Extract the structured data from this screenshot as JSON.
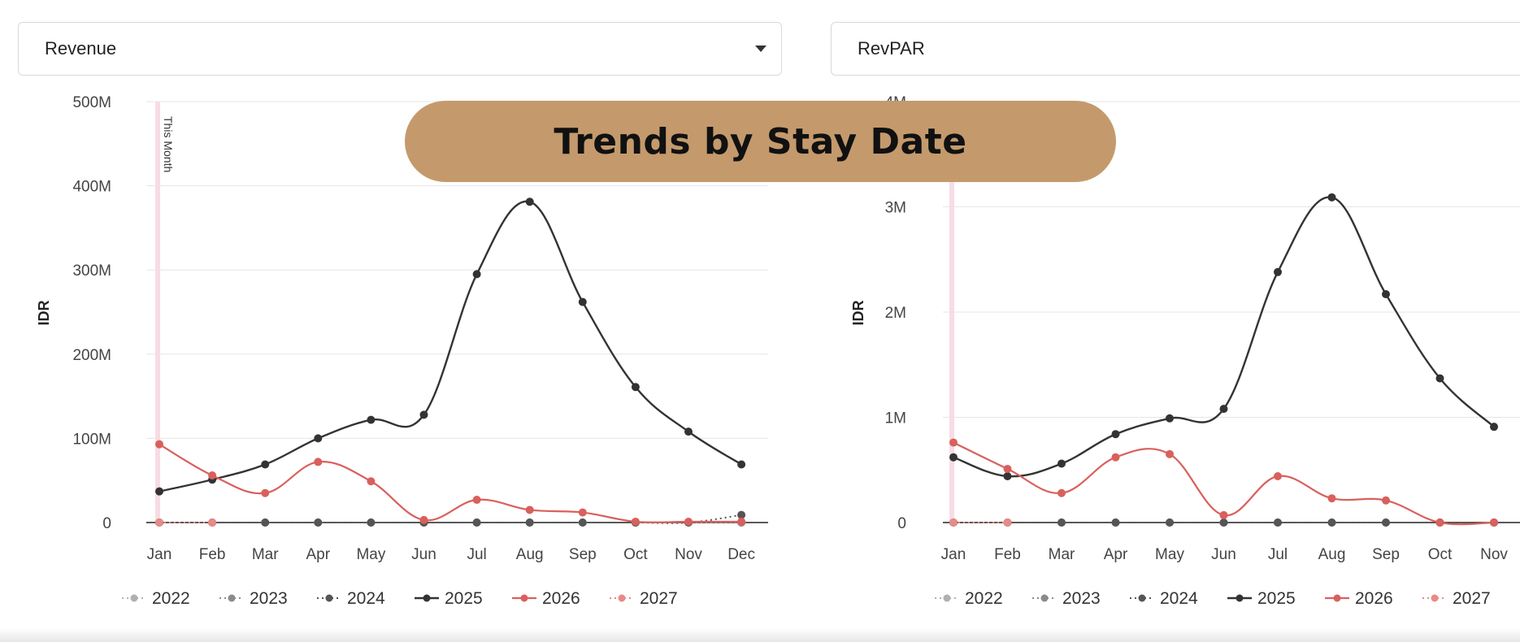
{
  "selectors": {
    "left": {
      "value": "Revenue"
    },
    "right": {
      "value": "RevPAR"
    }
  },
  "banner": {
    "title": "Trends by Stay Date"
  },
  "colors": {
    "2022": "#b0b0b0",
    "2023": "#8a8a8a",
    "2024": "#555555",
    "2025": "#333333",
    "2026": "#d9605c",
    "2027": "#e88a87",
    "marker": "#f7dce4",
    "grid": "#e6e6e6"
  },
  "chart_data": [
    {
      "type": "line",
      "ylabel": "IDR",
      "ylim": [
        0,
        500000000
      ],
      "yticks": [
        0,
        100000000,
        200000000,
        300000000,
        400000000,
        500000000
      ],
      "ytick_labels": [
        "0",
        "100M",
        "200M",
        "300M",
        "400M",
        "500M"
      ],
      "categories": [
        "Jan",
        "Feb",
        "Mar",
        "Apr",
        "May",
        "Jun",
        "Jul",
        "Aug",
        "Sep",
        "Oct",
        "Nov",
        "Dec"
      ],
      "marker_label": "This Month",
      "marker_index": 0,
      "series": [
        {
          "name": "2022",
          "values": [
            0,
            0,
            0,
            0,
            0,
            0,
            0,
            0,
            0,
            0,
            0,
            0
          ]
        },
        {
          "name": "2023",
          "values": [
            0,
            0,
            0,
            0,
            0,
            0,
            0,
            0,
            0,
            0,
            0,
            0
          ]
        },
        {
          "name": "2024",
          "values": [
            0,
            0,
            0,
            0,
            0,
            0,
            0,
            0,
            0,
            0,
            0,
            9000000
          ]
        },
        {
          "name": "2025",
          "values": [
            37000000,
            51000000,
            69000000,
            100000000,
            122000000,
            128000000,
            295000000,
            381000000,
            262000000,
            161000000,
            108000000,
            69000000
          ]
        },
        {
          "name": "2026",
          "values": [
            93000000,
            56000000,
            35000000,
            72000000,
            49000000,
            3000000,
            27000000,
            15000000,
            12000000,
            1000000,
            1000000,
            1000000
          ]
        },
        {
          "name": "2027",
          "values": [
            0,
            0,
            null,
            null,
            null,
            null,
            null,
            null,
            null,
            null,
            null,
            null
          ]
        }
      ],
      "legend": [
        "2022",
        "2023",
        "2024",
        "2025",
        "2026",
        "2027"
      ]
    },
    {
      "type": "line",
      "ylabel": "IDR",
      "ylim": [
        0,
        4000000
      ],
      "yticks": [
        0,
        1000000,
        2000000,
        3000000,
        4000000
      ],
      "ytick_labels": [
        "0",
        "1M",
        "2M",
        "3M",
        "4M"
      ],
      "categories": [
        "Jan",
        "Feb",
        "Mar",
        "Apr",
        "May",
        "Jun",
        "Jul",
        "Aug",
        "Sep",
        "Oct",
        "Nov"
      ],
      "marker_label": "",
      "marker_index": 0,
      "series": [
        {
          "name": "2022",
          "values": [
            0,
            0,
            0,
            0,
            0,
            0,
            0,
            0,
            0,
            0,
            0
          ]
        },
        {
          "name": "2023",
          "values": [
            0,
            0,
            0,
            0,
            0,
            0,
            0,
            0,
            0,
            0,
            0
          ]
        },
        {
          "name": "2024",
          "values": [
            0,
            0,
            0,
            0,
            0,
            0,
            0,
            0,
            0,
            0,
            0
          ]
        },
        {
          "name": "2025",
          "values": [
            620000,
            440000,
            560000,
            840000,
            990000,
            1080000,
            2380000,
            3090000,
            2170000,
            1370000,
            910000
          ]
        },
        {
          "name": "2026",
          "values": [
            760000,
            510000,
            280000,
            620000,
            650000,
            70000,
            440000,
            230000,
            210000,
            0,
            0
          ]
        },
        {
          "name": "2027",
          "values": [
            0,
            0,
            null,
            null,
            null,
            null,
            null,
            null,
            null,
            null,
            null
          ]
        }
      ],
      "legend": [
        "2022",
        "2023",
        "2024",
        "2025",
        "2026",
        "2027"
      ]
    }
  ]
}
